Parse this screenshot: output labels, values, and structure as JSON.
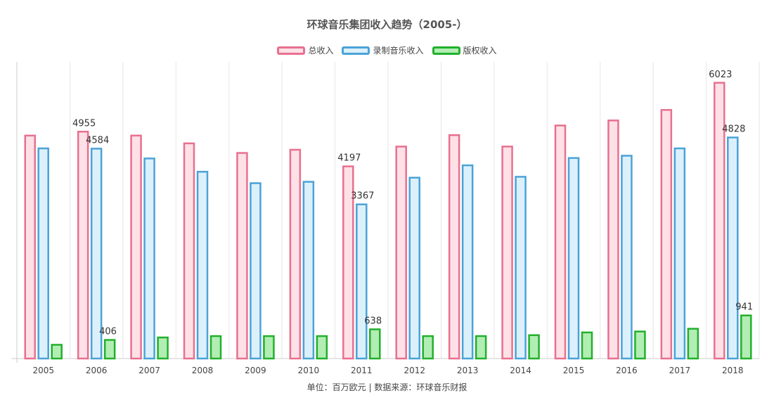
{
  "chart_data": {
    "type": "bar",
    "title": "环球音乐集团收入趋势（2005-）",
    "categories": [
      "2005",
      "2006",
      "2007",
      "2008",
      "2009",
      "2010",
      "2011",
      "2012",
      "2013",
      "2014",
      "2015",
      "2016",
      "2017",
      "2018"
    ],
    "series": [
      {
        "name": "总收入",
        "values": [
          4870,
          4955,
          4870,
          4700,
          4490,
          4560,
          4197,
          4630,
          4880,
          4630,
          5090,
          5200,
          5430,
          6023
        ],
        "color": "#e8708f",
        "fill": "#fde1e7"
      },
      {
        "name": "录制音乐收入",
        "values": [
          4590,
          4584,
          4370,
          4080,
          3830,
          3860,
          3367,
          3950,
          4220,
          3970,
          4380,
          4430,
          4590,
          4828
        ],
        "color": "#4aa3d6",
        "fill": "#dcf0fb"
      },
      {
        "name": "版权收入",
        "values": [
          300,
          406,
          460,
          490,
          490,
          490,
          638,
          490,
          490,
          510,
          570,
          590,
          650,
          941
        ],
        "color": "#22b02c",
        "fill": "#b2edb4"
      }
    ],
    "data_labels": [
      {
        "series": 0,
        "index": 1,
        "text": "4955"
      },
      {
        "series": 1,
        "index": 1,
        "text": "4584"
      },
      {
        "series": 2,
        "index": 1,
        "text": "406"
      },
      {
        "series": 0,
        "index": 6,
        "text": "4197"
      },
      {
        "series": 1,
        "index": 6,
        "text": "3367"
      },
      {
        "series": 2,
        "index": 6,
        "text": "638"
      },
      {
        "series": 0,
        "index": 13,
        "text": "6023"
      },
      {
        "series": 1,
        "index": 13,
        "text": "4828"
      },
      {
        "series": 2,
        "index": 13,
        "text": "941"
      }
    ],
    "ylim": [
      0,
      6480
    ],
    "y_axis_visible": false,
    "grid": "vertical",
    "legend_position": "top-center",
    "footnote": "单位：百万欧元 | 数据来源：环球音乐财报"
  }
}
